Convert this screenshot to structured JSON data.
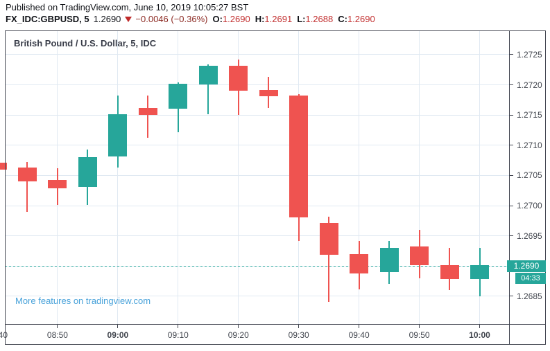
{
  "header": {
    "published": "Published on TradingView.com, June 10, 2019 10:05:27 BST",
    "symbol": "FX_IDC:GBPUSD, 5",
    "price": "1.2690",
    "direction_icon": "down-triangle",
    "change": "−0.0046 (−0.36%)",
    "ohlc": {
      "o_label": "O:",
      "o": "1.2690",
      "h_label": "H:",
      "h": "1.2691",
      "l_label": "L:",
      "l": "1.2688",
      "c_label": "C:",
      "c": "1.2690"
    }
  },
  "chart": {
    "title": "British Pound / U.S. Dollar, 5, IDC",
    "footer_link": "More features on tradingview.com",
    "last_price_label": "1.2690",
    "countdown_label": "04:33",
    "colors": {
      "up": "#26a69a",
      "down": "#ef5350",
      "grid": "#e0e9f2",
      "frame": "#434651",
      "link": "#48a2da",
      "axis_text": "#42464e",
      "title_text": "#383c48",
      "change_text": "#8c2a23",
      "ohlc_value_text": "#c22f2f",
      "triangle": "#c02a2a",
      "label_bg": "#26a69a",
      "label_text": "#ffffff"
    }
  },
  "chart_data": {
    "type": "candlestick",
    "title": "British Pound / U.S. Dollar, 5, IDC",
    "symbol": "FX_IDC:GBPUSD",
    "interval_minutes": 5,
    "grid": true,
    "legend_position": "none",
    "current_price": 1.269,
    "candles": [
      {
        "t": "08:40",
        "o": 1.27071,
        "h": 1.27073,
        "l": 1.27057,
        "c": 1.2706
      },
      {
        "t": "08:45",
        "o": 1.27063,
        "h": 1.27072,
        "l": 1.2699,
        "c": 1.2704
      },
      {
        "t": "08:50",
        "o": 1.27042,
        "h": 1.27062,
        "l": 1.27001,
        "c": 1.27029
      },
      {
        "t": "08:55",
        "o": 1.27031,
        "h": 1.27093,
        "l": 1.27001,
        "c": 1.2708
      },
      {
        "t": "09:00",
        "o": 1.27081,
        "h": 1.27182,
        "l": 1.27063,
        "c": 1.27151
      },
      {
        "t": "09:05",
        "o": 1.27162,
        "h": 1.27182,
        "l": 1.27112,
        "c": 1.2715
      },
      {
        "t": "09:10",
        "o": 1.2716,
        "h": 1.27204,
        "l": 1.27121,
        "c": 1.27202
      },
      {
        "t": "09:15",
        "o": 1.27201,
        "h": 1.27234,
        "l": 1.27151,
        "c": 1.27232
      },
      {
        "t": "09:20",
        "o": 1.27232,
        "h": 1.27242,
        "l": 1.2715,
        "c": 1.2719
      },
      {
        "t": "09:25",
        "o": 1.27191,
        "h": 1.27213,
        "l": 1.27162,
        "c": 1.27181
      },
      {
        "t": "09:30",
        "o": 1.27182,
        "h": 1.27184,
        "l": 1.26942,
        "c": 1.26981
      },
      {
        "t": "09:35",
        "o": 1.26971,
        "h": 1.26982,
        "l": 1.26841,
        "c": 1.26919
      },
      {
        "t": "09:40",
        "o": 1.2692,
        "h": 1.26941,
        "l": 1.26861,
        "c": 1.26888
      },
      {
        "t": "09:45",
        "o": 1.2689,
        "h": 1.26942,
        "l": 1.26871,
        "c": 1.2693
      },
      {
        "t": "09:50",
        "o": 1.26932,
        "h": 1.2696,
        "l": 1.2688,
        "c": 1.26901
      },
      {
        "t": "09:55",
        "o": 1.26901,
        "h": 1.2693,
        "l": 1.2686,
        "c": 1.26879
      },
      {
        "t": "10:00",
        "o": 1.26879,
        "h": 1.2693,
        "l": 1.2685,
        "c": 1.26902
      }
    ],
    "y_axis": {
      "range": [
        1.26804,
        1.2729
      ],
      "ticks": [
        "1.2725",
        "1.2720",
        "1.2715",
        "1.2710",
        "1.2705",
        "1.2700",
        "1.2695",
        "1.2690",
        "1.2685"
      ]
    },
    "x_axis": {
      "ticks": [
        {
          "label": "08:40",
          "index": 0,
          "bold": false,
          "partial": true
        },
        {
          "label": "08:50",
          "index": 2,
          "bold": false
        },
        {
          "label": "09:00",
          "index": 4,
          "bold": true
        },
        {
          "label": "09:10",
          "index": 6,
          "bold": false
        },
        {
          "label": "09:20",
          "index": 8,
          "bold": false
        },
        {
          "label": "09:30",
          "index": 10,
          "bold": false
        },
        {
          "label": "09:40",
          "index": 12,
          "bold": false
        },
        {
          "label": "09:50",
          "index": 14,
          "bold": false
        },
        {
          "label": "10:00",
          "index": 16,
          "bold": true
        }
      ]
    }
  }
}
